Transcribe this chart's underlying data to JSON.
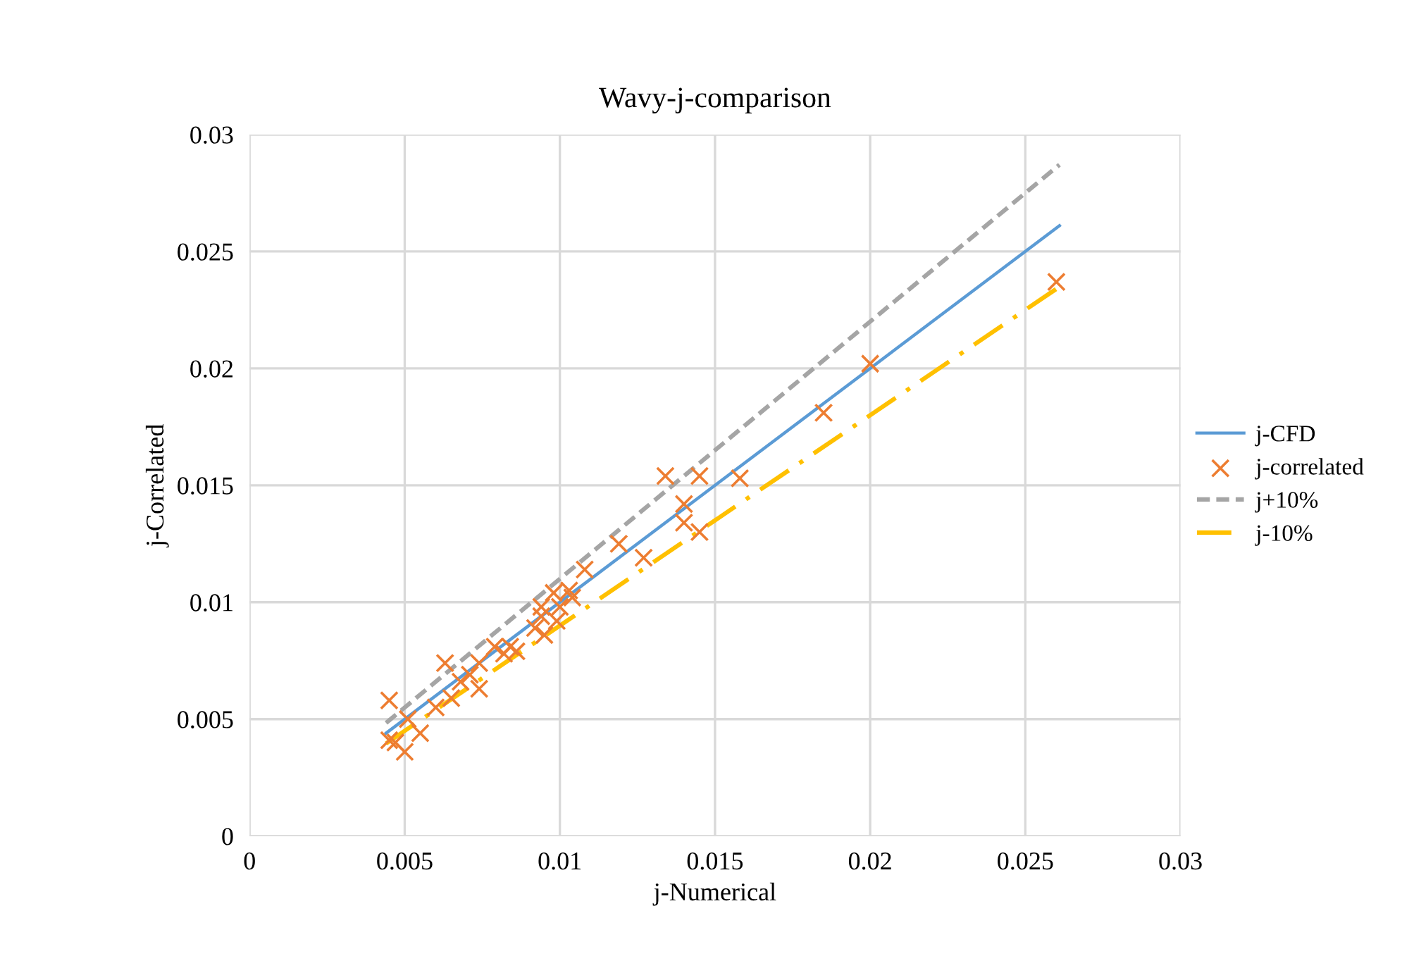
{
  "chart_data": {
    "type": "scatter",
    "title": "Wavy-j-comparison",
    "xlabel": "j-Numerical",
    "ylabel": "j-Correlated",
    "xlim": [
      0,
      0.03
    ],
    "ylim": [
      0,
      0.03
    ],
    "xticks": [
      0,
      0.005,
      0.01,
      0.015,
      0.02,
      0.025,
      0.03
    ],
    "yticks": [
      0,
      0.005,
      0.01,
      0.015,
      0.02,
      0.025,
      0.03
    ],
    "grid": true,
    "legend": "right",
    "series": [
      {
        "name": "j-CFD",
        "type": "line",
        "color": "#5b9bd5",
        "line_style": "solid",
        "marker": "none",
        "x": [
          0.0044,
          0.0261
        ],
        "values": [
          0.0044,
          0.0261
        ]
      },
      {
        "name": "j-correlated",
        "color": "#ed7d31",
        "marker": "cross",
        "x": [
          0.0045,
          0.0045,
          0.0047,
          0.005,
          0.0051,
          0.0055,
          0.006,
          0.0063,
          0.0065,
          0.0068,
          0.0071,
          0.0074,
          0.0074,
          0.0079,
          0.0082,
          0.0084,
          0.0086,
          0.0092,
          0.0094,
          0.0094,
          0.0095,
          0.0098,
          0.0099,
          0.01,
          0.0103,
          0.0104,
          0.0108,
          0.0119,
          0.0127,
          0.0134,
          0.014,
          0.014,
          0.0145,
          0.0145,
          0.0158,
          0.0185,
          0.02,
          0.026
        ],
        "values": [
          0.0058,
          0.0041,
          0.004,
          0.0036,
          0.005,
          0.0044,
          0.0055,
          0.0074,
          0.0059,
          0.0066,
          0.0069,
          0.0063,
          0.0074,
          0.0081,
          0.0078,
          0.0081,
          0.0079,
          0.0089,
          0.0094,
          0.0098,
          0.0086,
          0.0104,
          0.0092,
          0.0098,
          0.0105,
          0.0102,
          0.0114,
          0.0125,
          0.0119,
          0.0154,
          0.0142,
          0.0134,
          0.0154,
          0.013,
          0.0153,
          0.0181,
          0.0202,
          0.0237
        ]
      },
      {
        "name": "j+10%",
        "type": "line",
        "color": "#a5a5a5",
        "line_style": "dashed",
        "marker": "none",
        "x": [
          0.0044,
          0.0261
        ],
        "values": [
          0.00484,
          0.02871
        ]
      },
      {
        "name": "j-10%",
        "type": "line",
        "color": "#ffc000",
        "line_style": "dashdot",
        "marker": "none",
        "x": [
          0.0044,
          0.0261
        ],
        "values": [
          0.00396,
          0.02349
        ]
      }
    ]
  }
}
